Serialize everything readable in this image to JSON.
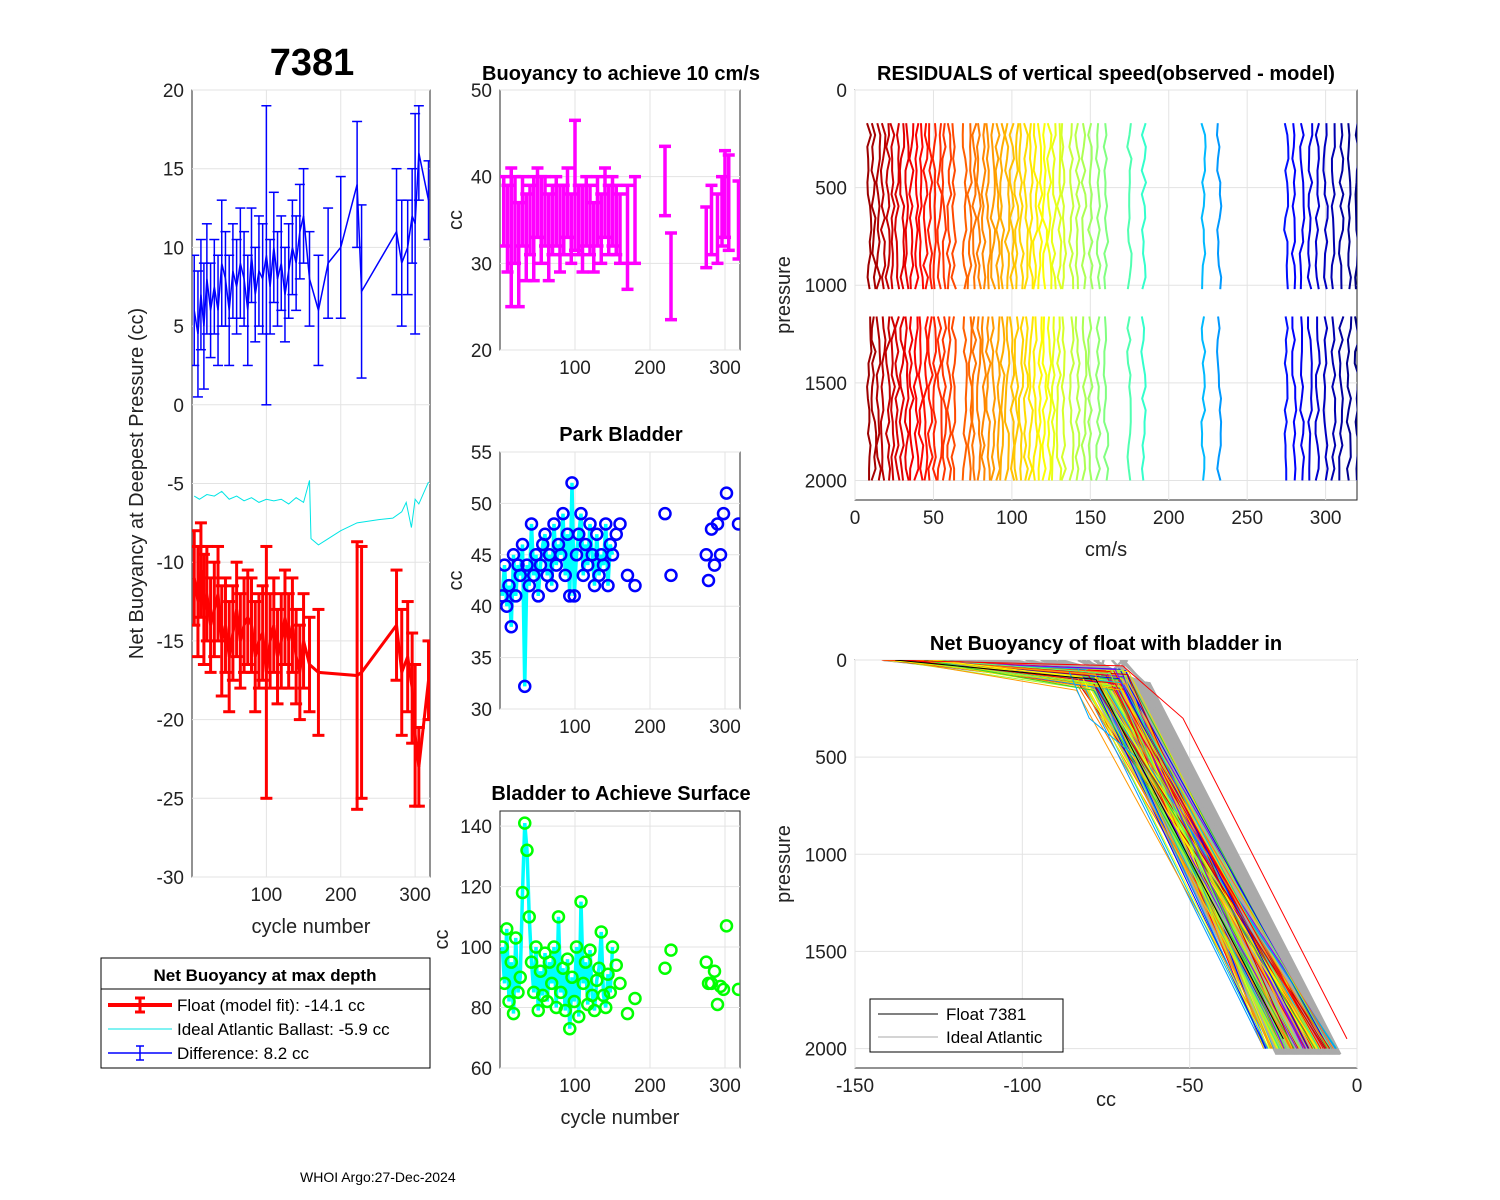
{
  "figure": {
    "footer": "WHOI Argo:27-Dec-2024"
  },
  "chart_data": [
    {
      "id": "net-buoyancy",
      "type": "line",
      "big_title": "7381",
      "xlabel": "cycle number",
      "ylabel": "Net Buoyancy at Deepest Pressure (cc)",
      "xlim": [
        0,
        320
      ],
      "ylim": [
        -30,
        20
      ],
      "xticks": [
        100,
        200,
        300
      ],
      "yticks": [
        20,
        15,
        10,
        5,
        0,
        -5,
        -10,
        -15,
        -20,
        -25,
        -30
      ],
      "grid": true,
      "colors": {
        "float": "#ff0000",
        "ideal": "#00e5e5",
        "difference": "#0000ff"
      },
      "series": [
        {
          "name": "Difference",
          "x": [
            3,
            8,
            12,
            16,
            20,
            25,
            30,
            35,
            40,
            45,
            50,
            55,
            60,
            65,
            70,
            75,
            80,
            85,
            90,
            95,
            100,
            105,
            110,
            115,
            120,
            125,
            130,
            135,
            140,
            145,
            150,
            158,
            170,
            183,
            200,
            222,
            228,
            275,
            282,
            290,
            296,
            300,
            305,
            318
          ],
          "y": [
            6,
            4.5,
            7,
            5,
            8,
            6,
            7.5,
            6,
            9,
            8,
            6,
            8.5,
            7.5,
            9,
            8,
            6,
            9.5,
            7,
            8.5,
            8,
            9.5,
            7.5,
            10,
            8,
            9,
            7,
            8.5,
            10,
            9,
            11,
            12,
            8,
            6,
            9,
            10,
            14,
            7.2,
            11,
            9,
            10,
            12,
            11.5,
            16,
            13
          ],
          "err": [
            3.5,
            4,
            3.5,
            4,
            3.5,
            3,
            3,
            3.5,
            4,
            3,
            3.5,
            3,
            3,
            3.5,
            3,
            3.5,
            3,
            3,
            3.5,
            3.5,
            9.5,
            3,
            3.5,
            3,
            3,
            3,
            3,
            3,
            3,
            3,
            3,
            3,
            3.5,
            3.5,
            4.5,
            4,
            5.5,
            4,
            4,
            3,
            3,
            7,
            3,
            2.5
          ]
        },
        {
          "name": "Float (model fit)",
          "x": [
            3,
            8,
            12,
            16,
            20,
            25,
            30,
            35,
            40,
            45,
            50,
            55,
            60,
            65,
            70,
            75,
            80,
            85,
            90,
            95,
            100,
            105,
            110,
            115,
            120,
            125,
            130,
            135,
            140,
            145,
            150,
            158,
            170,
            222,
            228,
            275,
            282,
            290,
            296,
            300,
            305,
            318
          ],
          "y": [
            -11,
            -12.5,
            -10.5,
            -13,
            -12,
            -14,
            -13,
            -12,
            -15,
            -14,
            -16,
            -14.5,
            -13,
            -15,
            -14,
            -13.5,
            -14,
            -16,
            -15,
            -14.5,
            -17,
            -15,
            -14,
            -16,
            -15,
            -13.5,
            -15,
            -14,
            -16,
            -17,
            -15,
            -16.5,
            -17,
            -17.2,
            -17,
            -14,
            -17,
            -16,
            -18,
            -21,
            -23,
            -17.5
          ],
          "err": [
            3,
            3.5,
            3,
            3.5,
            3,
            3,
            3,
            3,
            3.5,
            3,
            3.5,
            3,
            3,
            3,
            3,
            3,
            3,
            3.5,
            3,
            3,
            8,
            3,
            3,
            3,
            3,
            3,
            3,
            3,
            3,
            3,
            3,
            3,
            4,
            8.5,
            8,
            3.5,
            4,
            3.5,
            3.5,
            4.5,
            2.5,
            2.5
          ]
        },
        {
          "name": "Ideal Atlantic Ballast",
          "x": [
            3,
            10,
            20,
            30,
            40,
            50,
            60,
            70,
            80,
            90,
            100,
            110,
            120,
            130,
            140,
            150,
            158,
            160,
            170,
            180,
            200,
            222,
            250,
            270,
            282,
            288,
            295,
            300,
            305,
            318
          ],
          "y": [
            -5.8,
            -6,
            -5.7,
            -5.8,
            -5.5,
            -6,
            -5.8,
            -6.1,
            -5.9,
            -6.2,
            -6,
            -6.1,
            -6,
            -6.3,
            -5.9,
            -6.2,
            -4.8,
            -8.5,
            -8.9,
            -8.6,
            -8,
            -7.5,
            -7.3,
            -7.2,
            -6.8,
            -6.2,
            -7.8,
            -6,
            -6.3,
            -4.9
          ]
        }
      ],
      "legend": {
        "title": "Net Buoyancy at max depth",
        "entries": [
          "Float (model fit): -14.1 cc",
          "Ideal Atlantic Ballast:  -5.9 cc",
          "Difference:   8.2 cc"
        ]
      }
    },
    {
      "id": "buoyancy-10cms",
      "type": "scatter",
      "title": "Buoyancy to achieve 10 cm/s",
      "xlabel": "",
      "ylabel": "cc",
      "xlim": [
        0,
        320
      ],
      "ylim": [
        20,
        50
      ],
      "xticks": [
        100,
        200,
        300
      ],
      "yticks": [
        50,
        40,
        30,
        20
      ],
      "grid": true,
      "color": "#ff00ff",
      "x": [
        5,
        10,
        15,
        20,
        25,
        30,
        35,
        40,
        45,
        50,
        55,
        60,
        65,
        70,
        75,
        80,
        85,
        90,
        95,
        100,
        105,
        110,
        115,
        120,
        125,
        130,
        135,
        140,
        145,
        150,
        155,
        160,
        170,
        180,
        220,
        228,
        275,
        282,
        290,
        296,
        300,
        305,
        318
      ],
      "y": [
        36,
        34,
        33,
        35,
        31,
        36,
        33,
        35,
        34,
        37,
        35,
        36,
        33,
        35,
        36,
        34,
        35,
        37,
        34,
        39,
        35,
        34,
        36,
        35,
        33,
        36,
        34,
        37,
        35,
        36,
        35,
        34,
        33,
        35,
        39.5,
        28.5,
        33,
        35,
        34,
        36,
        38,
        37,
        35
      ],
      "err": [
        4,
        5,
        8,
        5,
        6,
        4,
        5,
        4,
        6,
        4,
        5,
        4,
        5,
        4,
        4,
        5,
        4,
        4,
        4,
        7.5,
        4,
        5,
        4,
        4,
        4,
        4,
        4,
        4,
        4,
        4,
        4,
        4,
        6,
        5,
        4,
        5,
        3.5,
        4,
        4,
        4,
        5,
        5.5,
        4.5
      ]
    },
    {
      "id": "park-bladder",
      "type": "scatter",
      "title": "Park Bladder",
      "xlabel": "",
      "ylabel": "cc",
      "xlim": [
        0,
        320
      ],
      "ylim": [
        30,
        55
      ],
      "xticks": [
        100,
        200,
        300
      ],
      "yticks": [
        55,
        50,
        45,
        40,
        35,
        30
      ],
      "grid": true,
      "colors": {
        "markers": "#0000ff",
        "line": "#00ffff"
      },
      "x": [
        3,
        6,
        9,
        12,
        15,
        18,
        21,
        24,
        27,
        30,
        33,
        36,
        39,
        42,
        45,
        48,
        51,
        54,
        57,
        60,
        63,
        66,
        69,
        72,
        75,
        78,
        81,
        84,
        87,
        90,
        93,
        96,
        99,
        102,
        105,
        108,
        111,
        114,
        117,
        120,
        123,
        126,
        129,
        132,
        135,
        138,
        141,
        144,
        147,
        150,
        155,
        160,
        170,
        180,
        220,
        228,
        275,
        278,
        282,
        286,
        290,
        294,
        298,
        302,
        318
      ],
      "y": [
        41,
        44,
        40,
        42,
        38,
        45,
        41,
        44,
        43,
        46,
        32.2,
        44,
        42,
        48,
        43,
        45,
        41,
        44,
        46,
        47,
        43,
        45,
        42,
        48,
        44,
        46,
        45,
        49,
        43,
        47,
        41,
        52,
        41,
        45,
        47,
        49,
        43,
        46,
        44,
        48,
        45,
        42,
        47,
        43,
        45,
        44,
        48,
        42,
        46,
        45,
        47,
        48,
        43,
        42,
        49,
        43,
        45,
        42.5,
        47.5,
        44,
        48,
        45,
        49,
        51,
        48
      ]
    },
    {
      "id": "bladder-surface",
      "type": "scatter",
      "title": "Bladder to Achieve Surface",
      "xlabel": "cycle number",
      "ylabel": "cc",
      "xlim": [
        0,
        320
      ],
      "ylim": [
        60,
        145
      ],
      "xticks": [
        100,
        200,
        300
      ],
      "yticks": [
        140,
        120,
        100,
        80,
        60
      ],
      "grid": true,
      "colors": {
        "markers": "#00ff00",
        "line": "#00ffff"
      },
      "x": [
        3,
        6,
        9,
        12,
        15,
        18,
        21,
        24,
        27,
        30,
        33,
        36,
        39,
        42,
        45,
        48,
        51,
        54,
        57,
        60,
        63,
        66,
        69,
        72,
        75,
        78,
        81,
        84,
        87,
        90,
        93,
        96,
        99,
        102,
        105,
        108,
        111,
        114,
        117,
        120,
        123,
        126,
        129,
        132,
        135,
        138,
        141,
        144,
        147,
        150,
        155,
        160,
        170,
        180,
        220,
        228,
        275,
        278,
        282,
        286,
        290,
        294,
        298,
        302,
        318
      ],
      "y": [
        100,
        88,
        106,
        82,
        95,
        78,
        103,
        85,
        90,
        118,
        141,
        132,
        110,
        95,
        85,
        100,
        79,
        92,
        84,
        98,
        82,
        95,
        88,
        100,
        80,
        110,
        85,
        93,
        79,
        96,
        73,
        90,
        82,
        100,
        77,
        115,
        88,
        95,
        81,
        99,
        84,
        79,
        89,
        93,
        105,
        84,
        80,
        91,
        85,
        100,
        94,
        88,
        78,
        83,
        93,
        99,
        95,
        88,
        88,
        92,
        81,
        87,
        86,
        107,
        86
      ]
    },
    {
      "id": "residuals",
      "type": "line",
      "title": "RESIDUALS of vertical speed(observed - model)",
      "xlabel": "cm/s",
      "ylabel": "pressure",
      "xlim": [
        0,
        320
      ],
      "ylim": [
        0,
        2100
      ],
      "xticks": [
        0,
        50,
        100,
        150,
        200,
        250,
        300
      ],
      "yticks": [
        0,
        500,
        1000,
        1500,
        2000
      ],
      "grid": true,
      "upper_segment": [
        170,
        1020
      ],
      "lower_segment": [
        1160,
        2000
      ],
      "x_positions": [
        9,
        12,
        15,
        18,
        21,
        24,
        27,
        30,
        33,
        36,
        39,
        42,
        45,
        48,
        51,
        54,
        57,
        60,
        63,
        70,
        73,
        76,
        79,
        82,
        85,
        88,
        91,
        94,
        97,
        100,
        103,
        106,
        109,
        112,
        115,
        118,
        121,
        124,
        127,
        130,
        133,
        138,
        142,
        146,
        150,
        155,
        160,
        175,
        184,
        222,
        232,
        275,
        280,
        285,
        290,
        295,
        300,
        305,
        310,
        315,
        320
      ]
    },
    {
      "id": "net-buoyancy-profile",
      "type": "line",
      "title": "Net Buoyancy of float with bladder in",
      "xlabel": "cc",
      "ylabel": "pressure",
      "xlim": [
        -150,
        0
      ],
      "ylim": [
        0,
        2100
      ],
      "xticks": [
        -150,
        -100,
        -50,
        0
      ],
      "yticks": [
        0,
        500,
        1000,
        1500,
        2000
      ],
      "grid": true,
      "legend": {
        "entries": [
          "Float 7381",
          "Ideal Atlantic"
        ],
        "colors": [
          "#000000",
          "#aaaaaa"
        ]
      },
      "ideal_start_x": [
        -142,
        -68
      ],
      "ideal_end_x": [
        -24,
        -5
      ],
      "float_start_x": [
        -142,
        -125
      ],
      "float_knee_x": [
        -85,
        -68
      ],
      "float_knee_p": [
        40,
        160
      ],
      "float_end_x": [
        -28,
        -6
      ]
    }
  ]
}
